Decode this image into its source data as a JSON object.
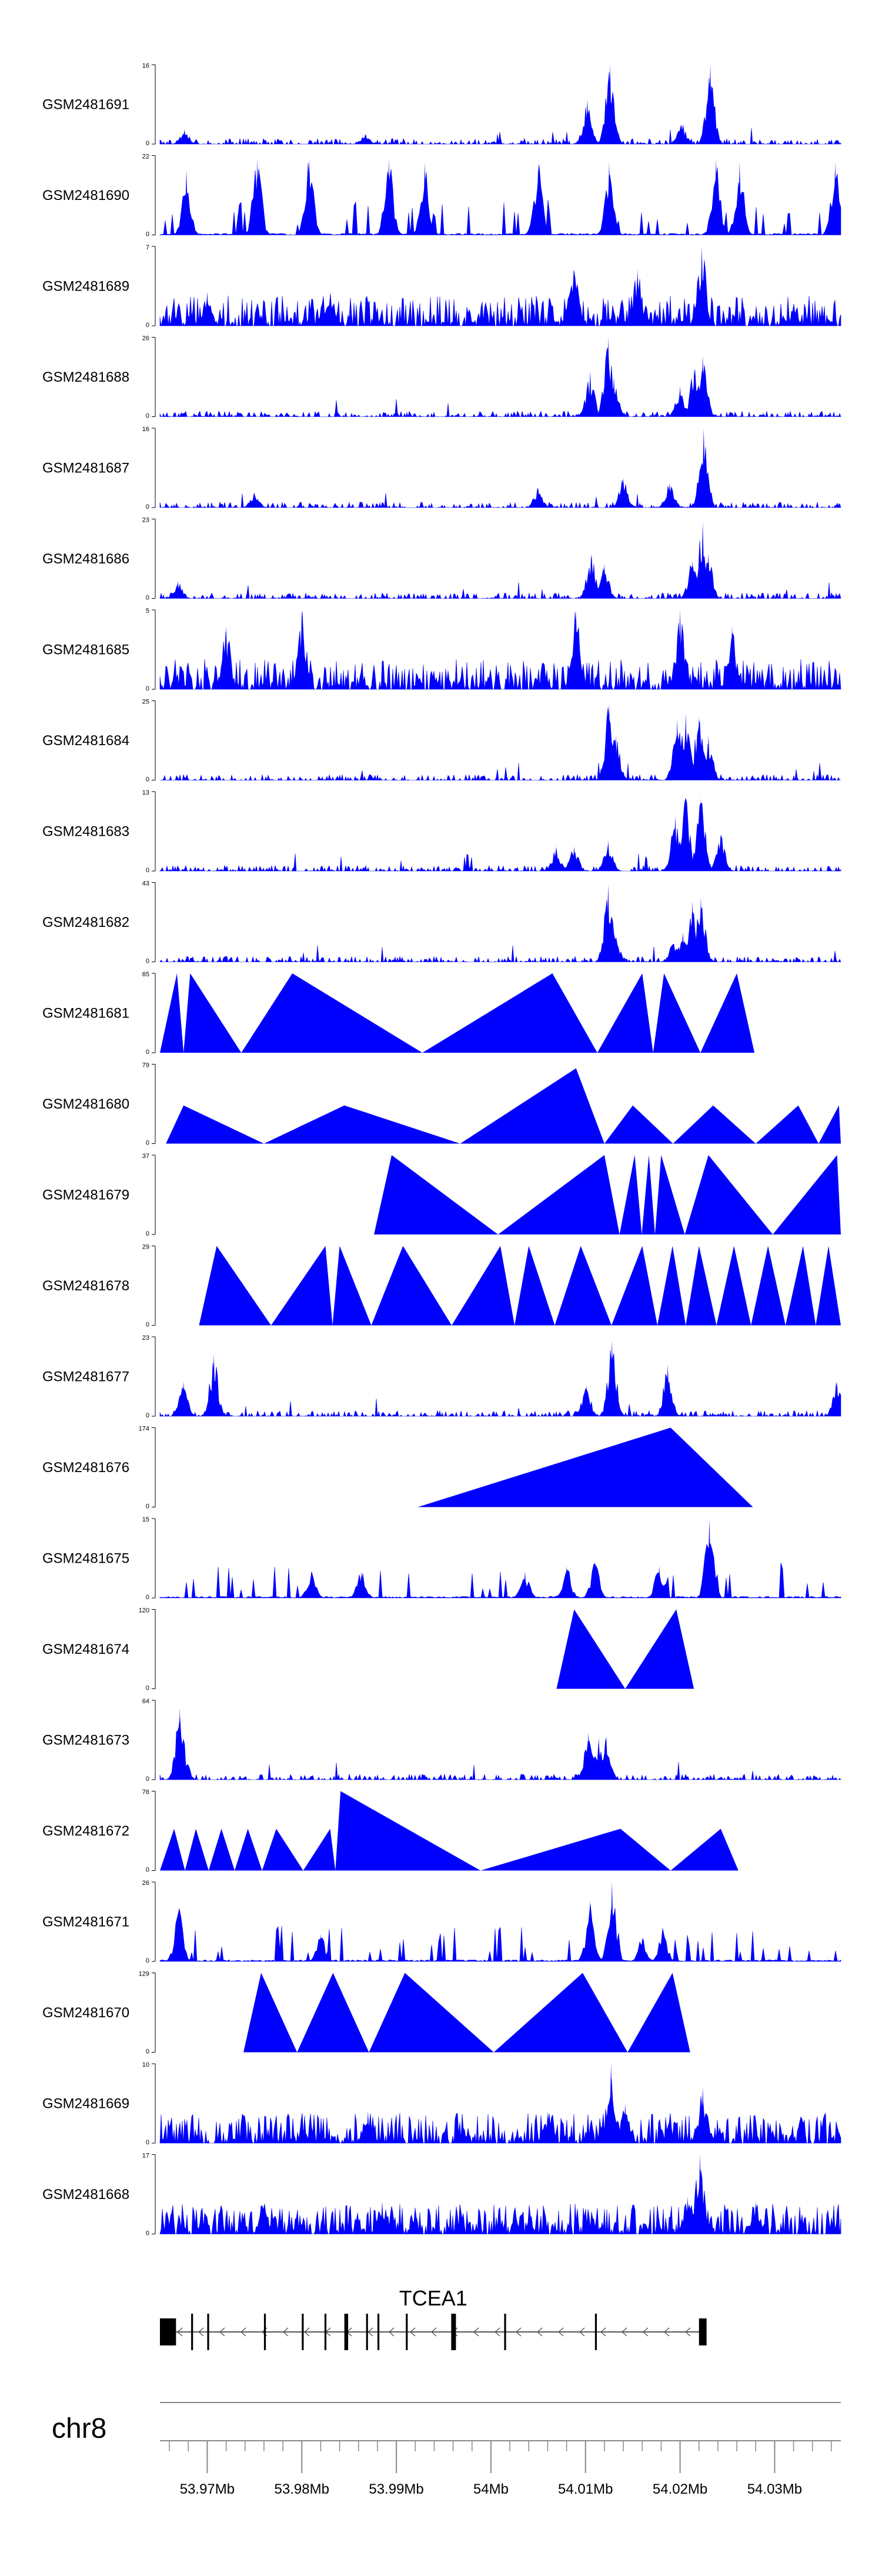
{
  "chart_data": {
    "type": "area",
    "title": "",
    "chromosome": "chr8",
    "gene_label": "TCEA1",
    "fill_color": "#0000ff",
    "x_range_bp": [
      53965000,
      54037000
    ],
    "axis_ticks": [
      {
        "value": 53970000,
        "label": "53.97Mb"
      },
      {
        "value": 53980000,
        "label": "53.98Mb"
      },
      {
        "value": 53990000,
        "label": "53.99Mb"
      },
      {
        "value": 54000000,
        "label": "54Mb"
      },
      {
        "value": 54010000,
        "label": "54.01Mb"
      },
      {
        "value": 54020000,
        "label": "54.02Mb"
      },
      {
        "value": 54030000,
        "label": "54.03Mb"
      }
    ],
    "gene_model": {
      "strand": "-",
      "start_bp": 53965000,
      "end_bp": 54022800,
      "exons_bp": [
        [
          53965000,
          53966700
        ],
        [
          53968300,
          53968500
        ],
        [
          53970000,
          53970200
        ],
        [
          53976000,
          53976200
        ],
        [
          53980000,
          53980200
        ],
        [
          53982400,
          53982600
        ],
        [
          53984500,
          53984900
        ],
        [
          53986800,
          53987000
        ],
        [
          53988000,
          53988200
        ],
        [
          53991000,
          53991200
        ],
        [
          53995800,
          53996300
        ],
        [
          54001400,
          54001600
        ],
        [
          54011000,
          54011200
        ],
        [
          54022000,
          54022800
        ]
      ]
    },
    "series": [
      {
        "name": "GSM2481691",
        "ymax": 16,
        "style": "dense",
        "peaks": [
          [
            54010200,
            9
          ],
          [
            54012600,
            16
          ],
          [
            54020200,
            4
          ],
          [
            54023200,
            16
          ],
          [
            53967600,
            3
          ],
          [
            53986700,
            2
          ]
        ]
      },
      {
        "name": "GSM2481690",
        "ymax": 22,
        "style": "spiky",
        "peaks": [
          [
            53967800,
            18
          ],
          [
            53975300,
            21
          ],
          [
            53980800,
            21
          ],
          [
            53989200,
            21
          ],
          [
            53993000,
            20
          ],
          [
            54005000,
            20
          ],
          [
            54012500,
            20
          ],
          [
            54023800,
            21
          ],
          [
            54026300,
            20
          ],
          [
            54036400,
            20
          ]
        ]
      },
      {
        "name": "GSM2481689",
        "ymax": 7,
        "style": "noisy",
        "peaks": [
          [
            54022300,
            7
          ],
          [
            54015500,
            5
          ],
          [
            54008800,
            5
          ],
          [
            53970000,
            3
          ],
          [
            53983000,
            3
          ]
        ]
      },
      {
        "name": "GSM2481688",
        "ymax": 26,
        "style": "dense",
        "peaks": [
          [
            54010500,
            15
          ],
          [
            54012400,
            26
          ],
          [
            54013000,
            13
          ],
          [
            54021500,
            16
          ],
          [
            54022400,
            20
          ],
          [
            54020000,
            10
          ]
        ]
      },
      {
        "name": "GSM2481687",
        "ymax": 16,
        "style": "dense",
        "peaks": [
          [
            54022500,
            16
          ],
          [
            54014000,
            6
          ],
          [
            54018900,
            5
          ],
          [
            54005000,
            4
          ],
          [
            53975000,
            3
          ]
        ]
      },
      {
        "name": "GSM2481686",
        "ymax": 23,
        "style": "dense",
        "peaks": [
          [
            53966900,
            5
          ],
          [
            54010600,
            13
          ],
          [
            54012000,
            10
          ],
          [
            54021300,
            11
          ],
          [
            54022400,
            22
          ],
          [
            54023000,
            13
          ]
        ]
      },
      {
        "name": "GSM2481685",
        "ymax": 5,
        "style": "noisy",
        "peaks": [
          [
            54009000,
            5
          ],
          [
            53980000,
            5
          ],
          [
            53972000,
            4
          ],
          [
            54020000,
            5
          ],
          [
            54025500,
            4
          ]
        ]
      },
      {
        "name": "GSM2481684",
        "ymax": 25,
        "style": "dense",
        "peaks": [
          [
            54012500,
            24
          ],
          [
            54013200,
            14
          ],
          [
            54019700,
            19
          ],
          [
            54020600,
            21
          ],
          [
            54022000,
            20
          ],
          [
            54023000,
            14
          ]
        ]
      },
      {
        "name": "GSM2481683",
        "ymax": 13,
        "style": "dense",
        "peaks": [
          [
            54012400,
            5
          ],
          [
            54019500,
            9
          ],
          [
            54020600,
            12
          ],
          [
            54022200,
            12
          ],
          [
            54024300,
            6
          ],
          [
            54006900,
            4
          ],
          [
            54008800,
            4
          ]
        ]
      },
      {
        "name": "GSM2481682",
        "ymax": 43,
        "style": "dense",
        "peaks": [
          [
            54012400,
            42
          ],
          [
            54013200,
            13
          ],
          [
            54020300,
            16
          ],
          [
            54021300,
            33
          ],
          [
            54022200,
            35
          ],
          [
            54019300,
            10
          ]
        ]
      },
      {
        "name": "GSM2481681",
        "ymax": 65,
        "style": "triangles",
        "peaks": [
          [
            53966800,
            65
          ],
          [
            53968200,
            65
          ],
          [
            53979000,
            65
          ],
          [
            54006500,
            65
          ],
          [
            54016000,
            65
          ],
          [
            54018300,
            65
          ],
          [
            54026000,
            65
          ]
        ]
      },
      {
        "name": "GSM2481680",
        "ymax": 79,
        "style": "triangles",
        "peaks": [
          [
            53967500,
            38
          ],
          [
            53984500,
            38
          ],
          [
            54009000,
            75
          ],
          [
            54015000,
            38
          ],
          [
            54023500,
            38
          ],
          [
            54032500,
            38
          ],
          [
            54036800,
            38
          ]
        ]
      },
      {
        "name": "GSM2481679",
        "ymax": 37,
        "style": "triangles",
        "peaks": [
          [
            53989500,
            37
          ],
          [
            54012000,
            37
          ],
          [
            54015200,
            37
          ],
          [
            54016700,
            37
          ],
          [
            54018000,
            37
          ],
          [
            54023000,
            37
          ],
          [
            54036600,
            37
          ]
        ]
      },
      {
        "name": "GSM2481678",
        "ymax": 29,
        "style": "triangles",
        "peaks": [
          [
            53971000,
            29
          ],
          [
            53982500,
            29
          ],
          [
            53984000,
            29
          ],
          [
            53990700,
            29
          ],
          [
            54001000,
            29
          ],
          [
            54004000,
            29
          ],
          [
            54009500,
            29
          ],
          [
            54016000,
            29
          ],
          [
            54019200,
            29
          ],
          [
            54022000,
            29
          ],
          [
            54025700,
            29
          ],
          [
            54029300,
            29
          ],
          [
            54033000,
            29
          ],
          [
            54035700,
            29
          ]
        ]
      },
      {
        "name": "GSM2481677",
        "ymax": 23,
        "style": "dense",
        "peaks": [
          [
            53967500,
            10
          ],
          [
            53970700,
            18
          ],
          [
            54010100,
            9
          ],
          [
            54012800,
            22
          ],
          [
            54018700,
            15
          ],
          [
            54036600,
            10
          ]
        ]
      },
      {
        "name": "GSM2481676",
        "ymax": 174,
        "style": "triangles",
        "peaks": [
          [
            54019000,
            174
          ]
        ]
      },
      {
        "name": "GSM2481675",
        "ymax": 15,
        "style": "spiky",
        "peaks": [
          [
            54023100,
            15
          ],
          [
            54011000,
            7
          ],
          [
            54008000,
            6
          ],
          [
            54017800,
            6
          ],
          [
            53986300,
            5
          ],
          [
            53981000,
            5
          ],
          [
            54003600,
            5
          ]
        ]
      },
      {
        "name": "GSM2481674",
        "ymax": 120,
        "style": "triangles",
        "peaks": [
          [
            54008800,
            120
          ],
          [
            54019600,
            120
          ]
        ]
      },
      {
        "name": "GSM2481673",
        "ymax": 64,
        "style": "dense",
        "peaks": [
          [
            53967100,
            58
          ],
          [
            53967600,
            20
          ],
          [
            54010300,
            38
          ],
          [
            54011400,
            34
          ],
          [
            54012200,
            35
          ]
        ]
      },
      {
        "name": "GSM2481672",
        "ymax": 76,
        "style": "triangles",
        "peaks": [
          [
            53966500,
            40
          ],
          [
            53968800,
            40
          ],
          [
            53971500,
            40
          ],
          [
            53974300,
            40
          ],
          [
            53977300,
            40
          ],
          [
            53983000,
            40
          ],
          [
            53984100,
            76
          ],
          [
            54013700,
            40
          ],
          [
            54024300,
            40
          ]
        ]
      },
      {
        "name": "GSM2481671",
        "ymax": 26,
        "style": "spiky",
        "peaks": [
          [
            53967000,
            18
          ],
          [
            54010500,
            20
          ],
          [
            54012800,
            26
          ],
          [
            54018200,
            10
          ],
          [
            54016000,
            8
          ],
          [
            53982000,
            9
          ]
        ]
      },
      {
        "name": "GSM2481670",
        "ymax": 129,
        "style": "triangles",
        "peaks": [
          [
            53975700,
            129
          ],
          [
            53983300,
            129
          ],
          [
            53990900,
            129
          ],
          [
            54009700,
            129
          ],
          [
            54019200,
            129
          ]
        ]
      },
      {
        "name": "GSM2481669",
        "ymax": 10,
        "style": "noisy",
        "peaks": [
          [
            54012700,
            10
          ],
          [
            54022400,
            7
          ],
          [
            54014200,
            5
          ],
          [
            54006000,
            4
          ],
          [
            53987000,
            4
          ]
        ]
      },
      {
        "name": "GSM2481668",
        "ymax": 17,
        "style": "noisy",
        "peaks": [
          [
            54022100,
            17
          ],
          [
            54020800,
            8
          ],
          [
            54028000,
            7
          ],
          [
            53988500,
            7
          ],
          [
            53976000,
            6
          ]
        ]
      }
    ]
  }
}
